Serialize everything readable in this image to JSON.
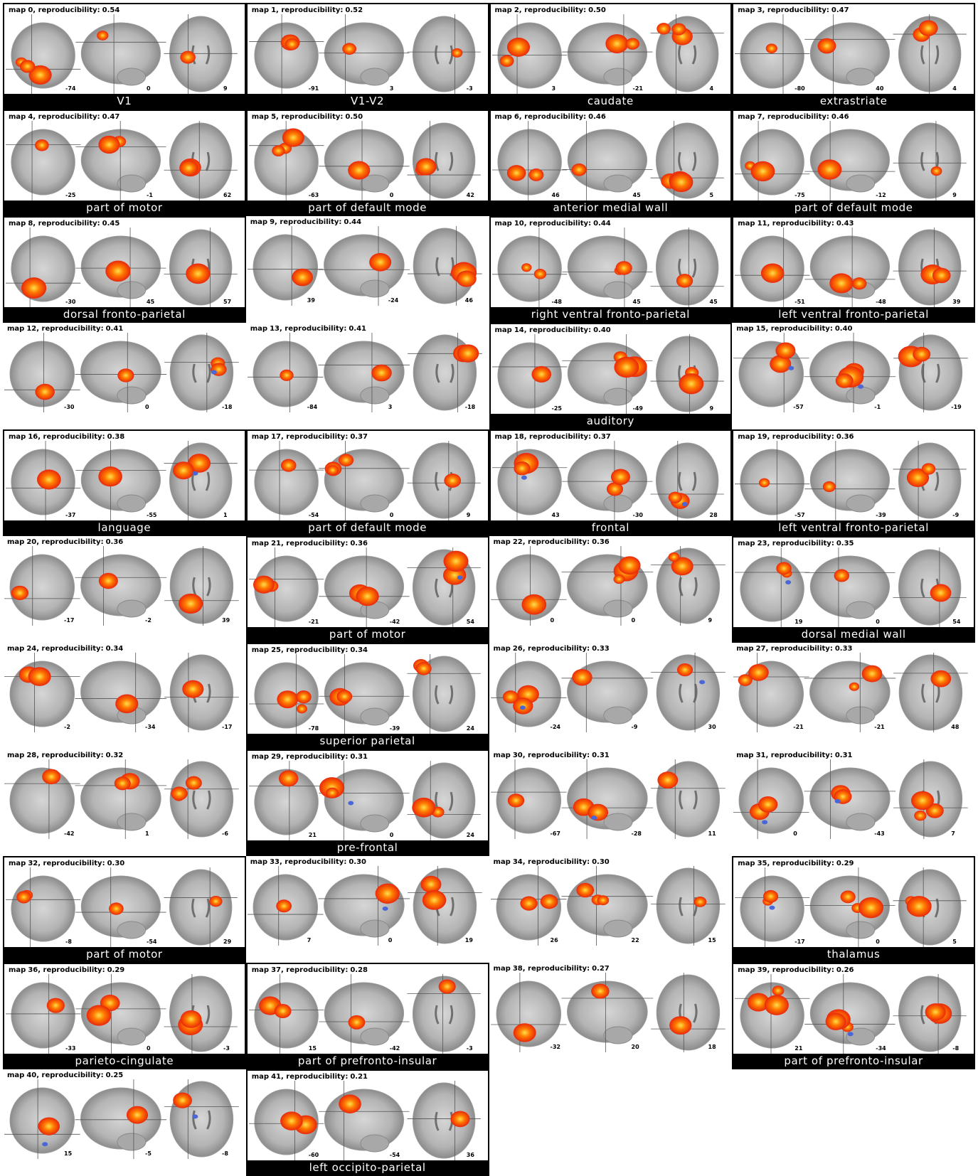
{
  "figure": {
    "header_prefix": "map",
    "reproducibility_label": "reproducibility:",
    "colors": {
      "positive_low": "#ff7a00",
      "positive_high": "#ffe04a",
      "positive_core": "#e8280b",
      "negative": "#4a67d8",
      "name_bar_bg": "#000000",
      "name_bar_text": "#ffffff"
    },
    "maps": [
      {
        "id": "0",
        "reproducibility": "0.54",
        "coords": [
          "-74",
          "0",
          "9"
        ],
        "name": "V1"
      },
      {
        "id": "1",
        "reproducibility": "0.52",
        "coords": [
          "-91",
          "3",
          "-3"
        ],
        "name": "V1-V2"
      },
      {
        "id": "2",
        "reproducibility": "0.50",
        "coords": [
          "3",
          "-21",
          "4"
        ],
        "name": "caudate"
      },
      {
        "id": "3",
        "reproducibility": "0.47",
        "coords": [
          "-80",
          "40",
          "4"
        ],
        "name": "extrastriate"
      },
      {
        "id": "4",
        "reproducibility": "0.47",
        "coords": [
          "-25",
          "-1",
          "62"
        ],
        "name": "part of motor"
      },
      {
        "id": "5",
        "reproducibility": "0.50",
        "coords": [
          "-63",
          "0",
          "42"
        ],
        "name": "part of default mode"
      },
      {
        "id": "6",
        "reproducibility": "0.46",
        "coords": [
          "46",
          "45",
          "5"
        ],
        "name": "anterior medial wall"
      },
      {
        "id": "7",
        "reproducibility": "0.46",
        "coords": [
          "-75",
          "-12",
          "9"
        ],
        "name": "part of default mode"
      },
      {
        "id": "8",
        "reproducibility": "0.45",
        "coords": [
          "-30",
          "45",
          "57"
        ],
        "name": "dorsal fronto-parietal"
      },
      {
        "id": "9",
        "reproducibility": "0.44",
        "coords": [
          "39",
          "-24",
          "46"
        ],
        "name": ""
      },
      {
        "id": "10",
        "reproducibility": "0.44",
        "coords": [
          "-48",
          "45",
          "45"
        ],
        "name": "right ventral fronto-parietal"
      },
      {
        "id": "11",
        "reproducibility": "0.43",
        "coords": [
          "-51",
          "-48",
          "39"
        ],
        "name": "left ventral fronto-parietal"
      },
      {
        "id": "12",
        "reproducibility": "0.41",
        "coords": [
          "-30",
          "0",
          "-18"
        ],
        "name": ""
      },
      {
        "id": "13",
        "reproducibility": "0.41",
        "coords": [
          "-84",
          "3",
          "-18"
        ],
        "name": ""
      },
      {
        "id": "14",
        "reproducibility": "0.40",
        "coords": [
          "-25",
          "-49",
          "9"
        ],
        "name": "auditory"
      },
      {
        "id": "15",
        "reproducibility": "0.40",
        "coords": [
          "-57",
          "-1",
          "-19"
        ],
        "name": ""
      },
      {
        "id": "16",
        "reproducibility": "0.38",
        "coords": [
          "-37",
          "-55",
          "1"
        ],
        "name": "language"
      },
      {
        "id": "17",
        "reproducibility": "0.37",
        "coords": [
          "-54",
          "0",
          "9"
        ],
        "name": "part of default mode"
      },
      {
        "id": "18",
        "reproducibility": "0.37",
        "coords": [
          "43",
          "-30",
          "28"
        ],
        "name": "frontal"
      },
      {
        "id": "19",
        "reproducibility": "0.36",
        "coords": [
          "-57",
          "-39",
          "-9"
        ],
        "name": "left ventral fronto-parietal"
      },
      {
        "id": "20",
        "reproducibility": "0.36",
        "coords": [
          "-17",
          "-2",
          "39"
        ],
        "name": ""
      },
      {
        "id": "21",
        "reproducibility": "0.36",
        "coords": [
          "-21",
          "-42",
          "54"
        ],
        "name": "part of motor"
      },
      {
        "id": "22",
        "reproducibility": "0.36",
        "coords": [
          "0",
          "0",
          "9"
        ],
        "name": ""
      },
      {
        "id": "23",
        "reproducibility": "0.35",
        "coords": [
          "19",
          "0",
          "54"
        ],
        "name": "dorsal medial wall"
      },
      {
        "id": "24",
        "reproducibility": "0.34",
        "coords": [
          "-2",
          "-34",
          "-17"
        ],
        "name": ""
      },
      {
        "id": "25",
        "reproducibility": "0.34",
        "coords": [
          "-78",
          "-39",
          "24"
        ],
        "name": "superior parietal"
      },
      {
        "id": "26",
        "reproducibility": "0.33",
        "coords": [
          "-24",
          "-9",
          "30"
        ],
        "name": ""
      },
      {
        "id": "27",
        "reproducibility": "0.33",
        "coords": [
          "-21",
          "-21",
          "48"
        ],
        "name": ""
      },
      {
        "id": "28",
        "reproducibility": "0.32",
        "coords": [
          "-42",
          "1",
          "-6"
        ],
        "name": ""
      },
      {
        "id": "29",
        "reproducibility": "0.31",
        "coords": [
          "21",
          "0",
          "24"
        ],
        "name": "pre-frontal"
      },
      {
        "id": "30",
        "reproducibility": "0.31",
        "coords": [
          "-67",
          "-28",
          "11"
        ],
        "name": ""
      },
      {
        "id": "31",
        "reproducibility": "0.31",
        "coords": [
          "0",
          "-43",
          "7"
        ],
        "name": ""
      },
      {
        "id": "32",
        "reproducibility": "0.30",
        "coords": [
          "-8",
          "-54",
          "29"
        ],
        "name": "part of motor"
      },
      {
        "id": "33",
        "reproducibility": "0.30",
        "coords": [
          "7",
          "0",
          "19"
        ],
        "name": ""
      },
      {
        "id": "34",
        "reproducibility": "0.30",
        "coords": [
          "26",
          "22",
          "15"
        ],
        "name": ""
      },
      {
        "id": "35",
        "reproducibility": "0.29",
        "coords": [
          "-17",
          "0",
          "5"
        ],
        "name": "thalamus"
      },
      {
        "id": "36",
        "reproducibility": "0.29",
        "coords": [
          "-33",
          "0",
          "-3"
        ],
        "name": "parieto-cingulate"
      },
      {
        "id": "37",
        "reproducibility": "0.28",
        "coords": [
          "15",
          "-42",
          "-3"
        ],
        "name": "part of prefronto-insular"
      },
      {
        "id": "38",
        "reproducibility": "0.27",
        "coords": [
          "-32",
          "20",
          "18"
        ],
        "name": ""
      },
      {
        "id": "39",
        "reproducibility": "0.26",
        "coords": [
          "21",
          "-34",
          "-8"
        ],
        "name": "part of prefronto-insular"
      },
      {
        "id": "40",
        "reproducibility": "0.25",
        "coords": [
          "15",
          "-5",
          "-8"
        ],
        "name": ""
      },
      {
        "id": "41",
        "reproducibility": "0.21",
        "coords": [
          "-60",
          "-54",
          "36"
        ],
        "name": "left occipito-parietal"
      }
    ]
  }
}
